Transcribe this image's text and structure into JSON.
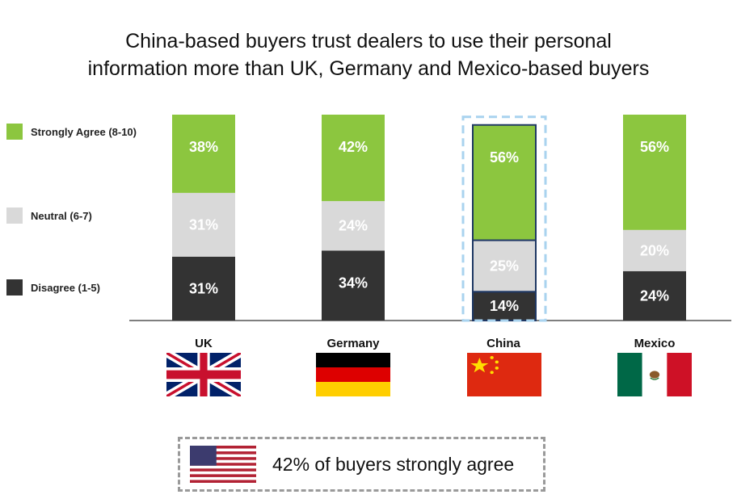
{
  "title_lines": [
    "China-based buyers trust dealers to use their personal",
    "information more than UK, Germany and Mexico-based buyers"
  ],
  "legend": [
    {
      "label": "Strongly Agree (8-10)",
      "color": "#8cc63f"
    },
    {
      "label": "Neutral (6-7)",
      "color": "#d9d9d9"
    },
    {
      "label": "Disagree (1-5)",
      "color": "#333333"
    }
  ],
  "chart_data": {
    "type": "bar",
    "stacked": true,
    "categories": [
      "UK",
      "Germany",
      "China",
      "Mexico"
    ],
    "series": [
      {
        "name": "Disagree (1-5)",
        "values": [
          31,
          34,
          14,
          24
        ],
        "labels": [
          "31%",
          "34%",
          "14%",
          "24%"
        ],
        "color": "#333333",
        "label_color": "#ffffff"
      },
      {
        "name": "Neutral (6-7)",
        "values": [
          31,
          24,
          25,
          20
        ],
        "labels": [
          "31%",
          "24%",
          "25%",
          "20%"
        ],
        "color": "#d9d9d9",
        "label_color": "#ffffff"
      },
      {
        "name": "Strongly Agree (8-10)",
        "values": [
          38,
          42,
          56,
          56
        ],
        "labels": [
          "38%",
          "42%",
          "56%",
          "56%"
        ],
        "color": "#8cc63f",
        "label_color": "#ffffff"
      }
    ],
    "highlighted_category": "China",
    "ylim": [
      0,
      100
    ]
  },
  "flags": [
    {
      "country": "UK",
      "icon": "uk-flag-icon"
    },
    {
      "country": "Germany",
      "icon": "germany-flag-icon"
    },
    {
      "country": "China",
      "icon": "china-flag-icon"
    },
    {
      "country": "Mexico",
      "icon": "mexico-flag-icon"
    }
  ],
  "note": {
    "icon": "us-flag-icon",
    "text": "42% of buyers strongly agree"
  },
  "colors": {
    "highlight_border": "#1f3864",
    "highlight_dash": "#a9d3ef",
    "axis": "#555555"
  }
}
